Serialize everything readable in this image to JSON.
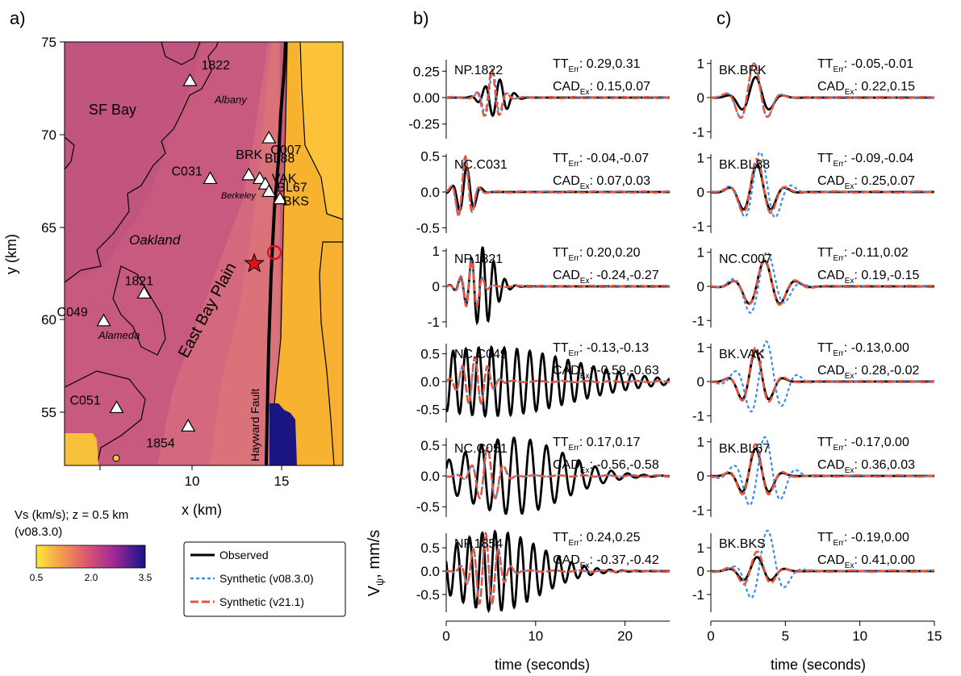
{
  "figure": {
    "panel_labels": [
      "a)",
      "b)",
      "c)"
    ]
  },
  "colors": {
    "observed": "#000000",
    "synthetic_v08": "#3b8ee8",
    "synthetic_v21": "#e8553a",
    "map_bg": "#c85a80",
    "map_low": "#f7c23a",
    "map_high": "#1a1580",
    "epicenter": "#e0101a"
  },
  "map": {
    "xlabel": "x (km)",
    "ylabel": "y (km)",
    "x_ticks": [
      "10",
      "15"
    ],
    "y_ticks": [
      "75",
      "70",
      "65",
      "60",
      "55"
    ],
    "labels": {
      "sf_bay": "SF Bay",
      "oakland": "Oakland",
      "east_bay_plain": "East Bay Plain",
      "hayward_fault": "Hayward Fault",
      "albany": "Albany",
      "berkeley": "Berkeley",
      "alameda": "Alameda"
    },
    "stations": [
      {
        "name": "1822",
        "x": 10.9,
        "y": 72.9
      },
      {
        "name": "C007",
        "x": 15.2,
        "y": 69.8
      },
      {
        "name": "BRK",
        "x": 14.1,
        "y": 67.8
      },
      {
        "name": "BL88",
        "x": 14.7,
        "y": 67.6
      },
      {
        "name": "C031",
        "x": 12.0,
        "y": 67.6
      },
      {
        "name": "VAK",
        "x": 15.0,
        "y": 67.3
      },
      {
        "name": "BL67",
        "x": 15.2,
        "y": 66.9
      },
      {
        "name": "BKS",
        "x": 15.8,
        "y": 66.5
      },
      {
        "name": "1821",
        "x": 8.4,
        "y": 61.4
      },
      {
        "name": "C049",
        "x": 6.2,
        "y": 59.9
      },
      {
        "name": "C051",
        "x": 6.9,
        "y": 55.2
      },
      {
        "name": "1854",
        "x": 10.8,
        "y": 54.2
      }
    ],
    "epicenter": {
      "x": 14.4,
      "y": 63.0
    },
    "circle": {
      "x": 15.5,
      "y": 63.6
    }
  },
  "colorbar": {
    "title_line1": "Vs (km/s); z = 0.5 km",
    "title_line2": "(v08.3.0)",
    "ticks": [
      "0.5",
      "2.0",
      "3.5"
    ]
  },
  "legend": {
    "observed": "Observed",
    "synthetic_v08": "Synthetic (v08.3.0)",
    "synthetic_v21": "Synthetic (v21.1)"
  },
  "axes": {
    "ylabel_main": "V",
    "ylabel_sub": "ψ",
    "ylabel_unit": ", mm/s",
    "xlabel": "time (seconds)",
    "b_x_ticks": [
      "0",
      "10",
      "20"
    ],
    "c_x_ticks": [
      "0",
      "5",
      "10",
      "15"
    ]
  },
  "chart_data": [
    {
      "type": "line",
      "panel": "b",
      "xlabel": "time (seconds)",
      "ylabel": "Vψ, mm/s",
      "xlim": [
        0,
        25
      ],
      "traces": [
        {
          "station": "NP.1822",
          "tt_err": "0.29,0.31",
          "cad_ex": "0.15,0.07",
          "yticks": [
            "0.25",
            "0.00",
            "-0.25"
          ],
          "ytick_values": [
            0.25,
            0.0,
            -0.25
          ],
          "ylim": [
            -0.42,
            0.42
          ],
          "obs": {
            "amp": 0.18,
            "t0": 5.6,
            "f": 0.6,
            "w": 1.2,
            "p": 0.0
          },
          "s08": {
            "amp": 0.26,
            "t0": 5.2,
            "f": 0.55,
            "w": 0.9,
            "p": 1.57
          },
          "s21": {
            "amp": 0.27,
            "t0": 5.1,
            "f": 0.55,
            "w": 0.9,
            "p": 1.57
          }
        },
        {
          "station": "NC.C031",
          "tt_err": "-0.04,-0.07",
          "cad_ex": "0.07,0.03",
          "yticks": [
            "0.5",
            "0.0",
            "-0.5"
          ],
          "ytick_values": [
            0.5,
            0.0,
            -0.5
          ],
          "ylim": [
            -0.62,
            0.62
          ],
          "obs": {
            "amp": 0.35,
            "t0": 2.2,
            "f": 0.6,
            "w": 0.9,
            "p": 1.2
          },
          "s08": {
            "amp": 0.5,
            "t0": 2.1,
            "f": 0.6,
            "w": 0.8,
            "p": 1.4
          },
          "s21": {
            "amp": 0.5,
            "t0": 2.1,
            "f": 0.6,
            "w": 0.8,
            "p": 1.4
          }
        },
        {
          "station": "NP.1821",
          "tt_err": "0.20,0.20",
          "cad_ex": "-0.24,-0.27",
          "yticks": [
            "1",
            "0",
            "-1"
          ],
          "ytick_values": [
            1,
            0,
            -1
          ],
          "ylim": [
            -1.25,
            1.25
          ],
          "obs": {
            "amp": 1.1,
            "t0": 4.0,
            "f": 0.8,
            "w": 1.4,
            "p": 1.2
          },
          "s08": {
            "amp": 0.7,
            "t0": 2.8,
            "f": 0.8,
            "w": 0.9,
            "p": 1.4
          },
          "s21": {
            "amp": 0.7,
            "t0": 2.8,
            "f": 0.8,
            "w": 0.9,
            "p": 1.4
          }
        },
        {
          "station": "NC.C049",
          "tt_err": "-0.13,-0.13",
          "cad_ex": "-0.59,-0.63",
          "yticks": [
            "0.5",
            "0.0",
            "-0.5"
          ],
          "ytick_values": [
            0.5,
            0.0,
            -0.5
          ],
          "ylim": [
            -0.8,
            0.8
          ],
          "obs": {
            "amp": 0.62,
            "t0": 5.0,
            "f": 0.7,
            "w": 9.0,
            "p": 1.3
          },
          "s08": {
            "amp": 0.45,
            "t0": 3.2,
            "f": 0.7,
            "w": 1.4,
            "p": 1.5
          },
          "s21": {
            "amp": 0.45,
            "t0": 3.2,
            "f": 0.7,
            "w": 1.4,
            "p": 1.5
          }
        },
        {
          "station": "NC.C051",
          "tt_err": "0.17,0.17",
          "cad_ex": "-0.56,-0.58",
          "yticks": [
            "0.5",
            "0.0",
            "-0.5"
          ],
          "ytick_values": [
            0.5,
            0.0,
            -0.5
          ],
          "ylim": [
            -0.72,
            0.72
          ],
          "obs": {
            "amp": 0.62,
            "t0": 7.5,
            "f": 0.55,
            "w": 5.5,
            "p": 1.3
          },
          "s08": {
            "amp": 0.45,
            "t0": 4.6,
            "f": 0.55,
            "w": 1.3,
            "p": 1.5
          },
          "s21": {
            "amp": 0.45,
            "t0": 4.6,
            "f": 0.55,
            "w": 1.3,
            "p": 1.5
          }
        },
        {
          "station": "NP.1854",
          "tt_err": "0.24,0.25",
          "cad_ex": "-0.37,-0.42",
          "yticks": [
            "0.5",
            "0.0",
            "-0.5"
          ],
          "ytick_values": [
            0.5,
            0.0,
            -0.5
          ],
          "ylim": [
            -0.95,
            0.95
          ],
          "obs": {
            "amp": 0.85,
            "t0": 5.4,
            "f": 0.7,
            "w": 5.0,
            "p": 1.3
          },
          "s08": {
            "amp": 0.8,
            "t0": 4.4,
            "f": 0.7,
            "w": 1.4,
            "p": 1.5
          },
          "s21": {
            "amp": 0.8,
            "t0": 4.4,
            "f": 0.7,
            "w": 1.4,
            "p": 1.5
          }
        }
      ]
    },
    {
      "type": "line",
      "panel": "c",
      "xlabel": "time (seconds)",
      "ylabel": "Vψ, mm/s",
      "xlim": [
        0,
        15
      ],
      "traces": [
        {
          "station": "BK.BRK",
          "tt_err": "-0.05,-0.01",
          "cad_ex": "0.22,0.15",
          "yticks": [
            "1",
            "0",
            "-1"
          ],
          "ytick_values": [
            1,
            0,
            -1
          ],
          "ylim": [
            -1.3,
            1.3
          ],
          "obs": {
            "amp": 0.6,
            "t0": 3.0,
            "f": 0.5,
            "w": 0.9,
            "p": 1.57
          },
          "s08": {
            "amp": 1.0,
            "t0": 2.9,
            "f": 0.5,
            "w": 0.9,
            "p": 1.57
          },
          "s21": {
            "amp": 1.0,
            "t0": 2.9,
            "f": 0.5,
            "w": 0.9,
            "p": 1.57
          }
        },
        {
          "station": "BK.BL88",
          "tt_err": "-0.09,-0.04",
          "cad_ex": "0.25,0.07",
          "yticks": [
            "1",
            "0",
            "-1"
          ],
          "ytick_values": [
            1,
            0,
            -1
          ],
          "ylim": [
            -1.3,
            1.3
          ],
          "obs": {
            "amp": 0.8,
            "t0": 3.1,
            "f": 0.5,
            "w": 1.0,
            "p": 1.57
          },
          "s08": {
            "amp": 1.15,
            "t0": 3.3,
            "f": 0.45,
            "w": 1.1,
            "p": 1.57
          },
          "s21": {
            "amp": 0.95,
            "t0": 3.1,
            "f": 0.5,
            "w": 1.0,
            "p": 1.57
          }
        },
        {
          "station": "NC.C007",
          "tt_err": "-0.11,0.02",
          "cad_ex": "0.19,-0.15",
          "yticks": [
            "1",
            "0",
            "-1"
          ],
          "ytick_values": [
            1,
            0,
            -1
          ],
          "ylim": [
            -1.3,
            1.3
          ],
          "obs": {
            "amp": 0.75,
            "t0": 3.6,
            "f": 0.45,
            "w": 1.2,
            "p": 1.57
          },
          "s08": {
            "amp": 1.05,
            "t0": 3.5,
            "f": 0.4,
            "w": 1.2,
            "p": 0.8
          },
          "s21": {
            "amp": 0.8,
            "t0": 3.6,
            "f": 0.45,
            "w": 1.2,
            "p": 1.57
          }
        },
        {
          "station": "BK.VAK",
          "tt_err": "-0.13,0.00",
          "cad_ex": "0.28,-0.02",
          "yticks": [
            "1",
            "0",
            "-1"
          ],
          "ytick_values": [
            1,
            0,
            -1
          ],
          "ylim": [
            -1.3,
            1.3
          ],
          "obs": {
            "amp": 0.9,
            "t0": 3.0,
            "f": 0.5,
            "w": 0.9,
            "p": 1.57
          },
          "s08": {
            "amp": 1.2,
            "t0": 3.6,
            "f": 0.45,
            "w": 1.2,
            "p": 1.2
          },
          "s21": {
            "amp": 1.0,
            "t0": 3.0,
            "f": 0.5,
            "w": 0.9,
            "p": 1.57
          }
        },
        {
          "station": "BK.BL67",
          "tt_err": "-0.17,0.00",
          "cad_ex": "0.36,0.03",
          "yticks": [
            "1",
            "0",
            "-1"
          ],
          "ytick_values": [
            1,
            0,
            -1
          ],
          "ylim": [
            -1.3,
            1.3
          ],
          "obs": {
            "amp": 0.8,
            "t0": 3.0,
            "f": 0.5,
            "w": 0.9,
            "p": 1.57
          },
          "s08": {
            "amp": 1.15,
            "t0": 3.5,
            "f": 0.45,
            "w": 1.2,
            "p": 1.2
          },
          "s21": {
            "amp": 0.95,
            "t0": 3.0,
            "f": 0.5,
            "w": 0.9,
            "p": 1.57
          }
        },
        {
          "station": "BK.BKS",
          "tt_err": "-0.19,0.00",
          "cad_ex": "0.41,0.00",
          "yticks": [
            "1",
            "0",
            "-1"
          ],
          "ytick_values": [
            1,
            0,
            -1
          ],
          "ylim": [
            -1.9,
            1.9
          ],
          "obs": {
            "amp": 0.6,
            "t0": 3.1,
            "f": 0.5,
            "w": 1.0,
            "p": 1.57
          },
          "s08": {
            "amp": 1.75,
            "t0": 3.6,
            "f": 0.4,
            "w": 1.0,
            "p": 1.0
          },
          "s21": {
            "amp": 0.85,
            "t0": 3.1,
            "f": 0.5,
            "w": 1.0,
            "p": 1.57
          }
        }
      ]
    }
  ]
}
